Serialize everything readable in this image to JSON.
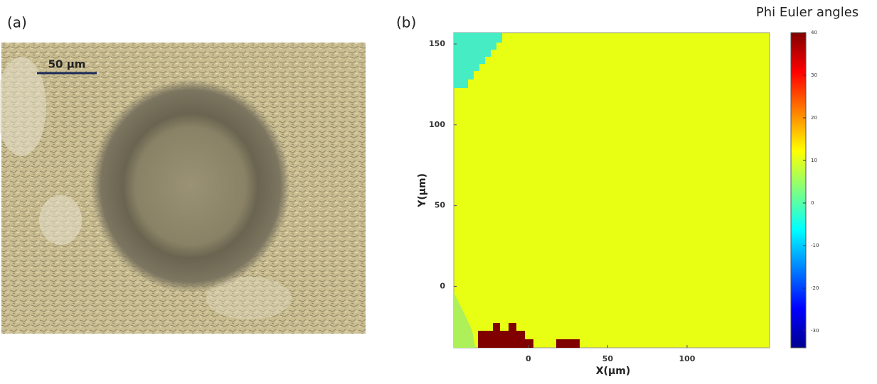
{
  "panels": {
    "a": {
      "label": "(a)",
      "scale_bar": "50 µm"
    },
    "b": {
      "label": "(b)",
      "xlabel": "X(µm)",
      "ylabel": "Y(µm)",
      "xlim": [
        -47,
        152
      ],
      "ylim": [
        -38,
        157
      ],
      "xticks": [
        0,
        50,
        100
      ],
      "yticks": [
        0,
        50,
        100,
        150
      ]
    }
  },
  "colorbar": {
    "title": "Phi Euler angles",
    "lim": [
      -34,
      40
    ],
    "ticks": [
      -30,
      -20,
      -10,
      0,
      10,
      20,
      30,
      40
    ]
  }
}
